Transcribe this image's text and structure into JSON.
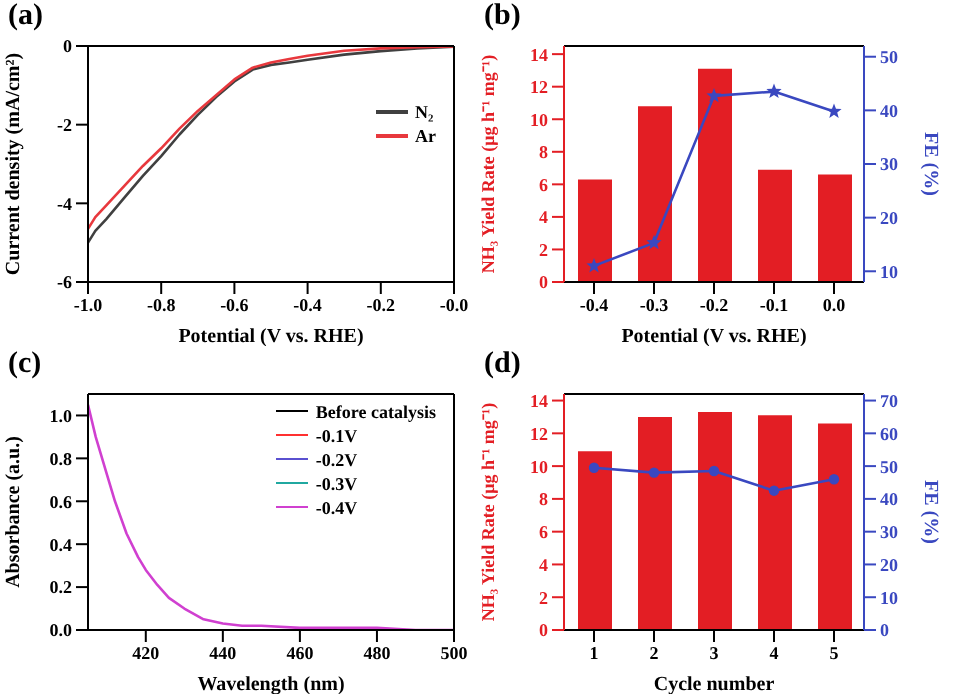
{
  "chart_data": [
    {
      "type": "line",
      "title": "(a)",
      "xlabel": "Potential (V vs. RHE)",
      "ylabel": "Current density (mA/cm²)",
      "x": [
        -1.0,
        -0.98,
        -0.95,
        -0.9,
        -0.85,
        -0.8,
        -0.75,
        -0.7,
        -0.65,
        -0.6,
        -0.55,
        -0.5,
        -0.45,
        -0.4,
        -0.3,
        -0.2,
        -0.1,
        0.0
      ],
      "series": [
        {
          "name": "N₂",
          "color": "#404040",
          "values": [
            -5.0,
            -4.7,
            -4.4,
            -3.85,
            -3.3,
            -2.8,
            -2.25,
            -1.75,
            -1.3,
            -0.9,
            -0.6,
            -0.48,
            -0.42,
            -0.35,
            -0.22,
            -0.13,
            -0.06,
            -0.02
          ]
        },
        {
          "name": "Ar",
          "color": "#e8383d",
          "values": [
            -4.65,
            -4.35,
            -4.05,
            -3.55,
            -3.05,
            -2.6,
            -2.1,
            -1.65,
            -1.25,
            -0.85,
            -0.55,
            -0.42,
            -0.33,
            -0.25,
            -0.12,
            -0.06,
            -0.03,
            -0.01
          ]
        }
      ],
      "xlim": [
        -1.0,
        0.0
      ],
      "xticks": [
        {
          "value": -1,
          "label": "-1.0"
        },
        -0.8,
        -0.6,
        -0.4,
        -0.2,
        {
          "value": 0,
          "label": "-0.0"
        }
      ],
      "ylim": [
        -6,
        0
      ],
      "yticks": [
        -6,
        -4,
        -2,
        0
      ],
      "legend": "right"
    },
    {
      "type": "bar",
      "title": "(b)",
      "xlabel": "Potential (V vs. RHE)",
      "ylabel": "NH₃ Yield Rate (μg h⁻¹ mg⁻¹)",
      "y2label": "FE (%)",
      "categories": [
        "-0.4",
        "-0.3",
        "-0.2",
        "-0.1",
        "0.0"
      ],
      "series": [
        {
          "color": "#e31e24",
          "values": [
            6.3,
            10.8,
            13.1,
            6.9,
            6.6
          ]
        },
        {
          "type": "line",
          "axis": "y2",
          "color": "#3a48c0",
          "values": [
            11,
            15.3,
            42.7,
            43.5,
            39.8
          ]
        }
      ],
      "ylim": [
        0,
        14.5
      ],
      "yticks": [
        0,
        2,
        4,
        6,
        8,
        10,
        12,
        14
      ],
      "y2lim": [
        8,
        52
      ],
      "y2ticks": [
        10,
        20,
        30,
        40,
        50
      ],
      "marker": "star"
    },
    {
      "type": "line",
      "title": "(c)",
      "xlabel": "Wavelength (nm)",
      "ylabel": "Absorbance (a.u.)",
      "x": [
        405,
        407,
        410,
        412,
        415,
        418,
        420,
        423,
        426,
        430,
        435,
        440,
        445,
        450,
        460,
        470,
        480,
        490,
        500
      ],
      "series": [
        {
          "name": "Before catalysis",
          "color": "#000000",
          "values": [
            null,
            null,
            null,
            null,
            null,
            null,
            null,
            null,
            null,
            null,
            null,
            null,
            null,
            null,
            null,
            null,
            null,
            null,
            null
          ]
        },
        {
          "name": "-0.1V",
          "color": "#ff3030",
          "values": [
            null,
            null,
            null,
            null,
            null,
            null,
            null,
            null,
            null,
            null,
            null,
            null,
            null,
            null,
            null,
            null,
            null,
            null,
            null
          ]
        },
        {
          "name": "-0.2V",
          "color": "#5a50d0",
          "values": [
            null,
            null,
            null,
            null,
            null,
            null,
            null,
            null,
            null,
            null,
            null,
            null,
            null,
            null,
            null,
            null,
            null,
            null,
            null
          ]
        },
        {
          "name": "-0.3V",
          "color": "#20a8a0",
          "values": [
            null,
            null,
            null,
            null,
            null,
            null,
            null,
            null,
            null,
            null,
            null,
            null,
            null,
            null,
            null,
            null,
            null,
            null,
            null
          ]
        },
        {
          "name": "-0.4V",
          "color": "#d040d0",
          "values": [
            1.05,
            0.9,
            0.72,
            0.6,
            0.45,
            0.34,
            0.28,
            0.21,
            0.15,
            0.1,
            0.05,
            0.03,
            0.02,
            0.02,
            0.01,
            0.01,
            0.01,
            0,
            0
          ]
        }
      ],
      "xlim": [
        405,
        500
      ],
      "xticks": [
        420,
        440,
        460,
        480,
        500
      ],
      "ylim": [
        0,
        1.1
      ],
      "yticks": [
        {
          "value": 0,
          "label": "0.0"
        },
        0.2,
        0.4,
        0.6,
        0.8,
        {
          "value": 1,
          "label": "1.0"
        }
      ],
      "legend": "top right"
    },
    {
      "type": "bar",
      "title": "(d)",
      "xlabel": "Cycle number",
      "ylabel": "NH₃ Yield Rate (μg h⁻¹ mg⁻¹)",
      "y2label": "FE (%)",
      "categories": [
        "1",
        "2",
        "3",
        "4",
        "5"
      ],
      "series": [
        {
          "color": "#e31e24",
          "values": [
            10.9,
            13.0,
            13.3,
            13.1,
            12.6
          ]
        },
        {
          "type": "line",
          "axis": "y2",
          "color": "#3a48c0",
          "values": [
            49.5,
            48,
            48.5,
            42.5,
            46
          ]
        }
      ],
      "ylim": [
        0,
        14.4
      ],
      "yticks": [
        0,
        2,
        4,
        6,
        8,
        10,
        12,
        14
      ],
      "y2lim": [
        0,
        72
      ],
      "y2ticks": [
        0,
        10,
        20,
        30,
        40,
        50,
        60,
        70
      ],
      "marker": "circle"
    }
  ]
}
